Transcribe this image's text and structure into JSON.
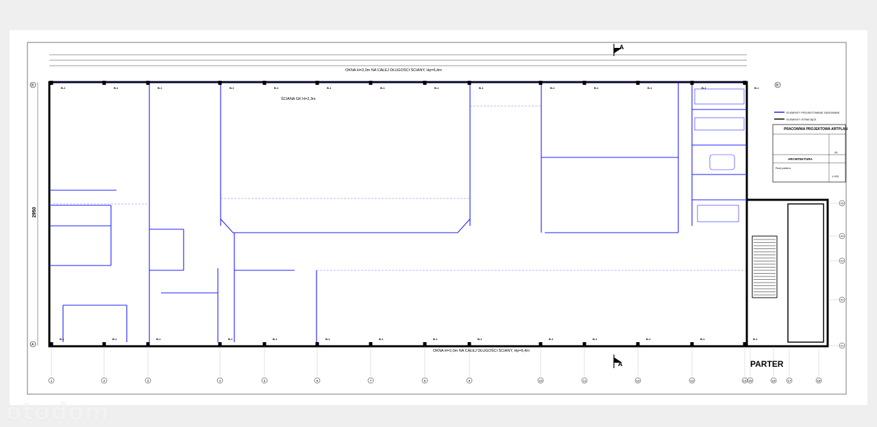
{
  "drawing": {
    "floor_label": "PARTER",
    "section_marker": "A",
    "height_label": "2950",
    "top_window_note": "OKNA H=2,0m NA CAŁEJ DŁUGOŚCI ŚCIANY, Hp=6,4m",
    "bottom_window_note": "OKNA H=2,0m NA CAŁEJ DŁUGOŚCI ŚCIANY, Hp=6,4m",
    "wall_note": "ŚCIANA GK H=2,3m",
    "column_tag": "B-1",
    "axis_numbers": [
      "1",
      "2",
      "3",
      "4",
      "5",
      "6",
      "7",
      "8",
      "9",
      "10",
      "11",
      "12",
      "13",
      "14",
      "15",
      "16",
      "17",
      "18"
    ],
    "axis_letters": [
      "X1",
      "X2",
      "X3",
      "X4",
      "X5"
    ],
    "grid_letters": [
      "A",
      "B"
    ]
  },
  "legend": {
    "items": [
      "ELEMENTY PROJEKTOWANE, BUDOWANE",
      "ELEMENTY ISTNIEJĄCE"
    ]
  },
  "title_block": {
    "office": "PRACOWNIA PROJEKTOWA ARTPLAN",
    "section": "ARCHITEKTURA",
    "sheet_title": "Rzut parteru",
    "sheet_no": "A1",
    "scale": "1:100"
  },
  "watermark": "otodom"
}
